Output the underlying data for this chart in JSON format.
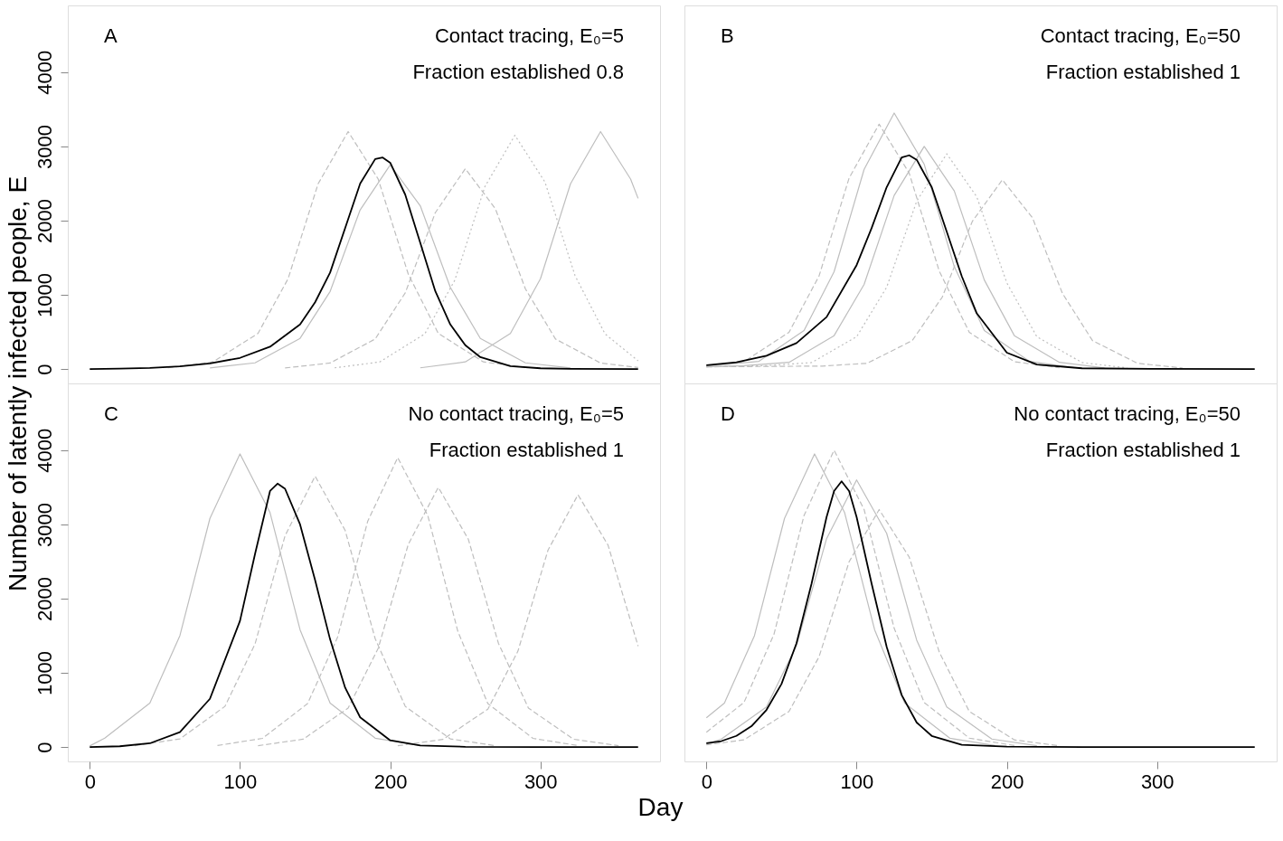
{
  "chart_data": [
    {
      "type": "line",
      "xlim": [
        -14.6,
        379.6
      ],
      "ylim": [
        -194,
        4900
      ],
      "xticks": [
        0,
        100,
        200,
        300
      ],
      "yticks": [
        0,
        1000,
        2000,
        3000,
        4000
      ],
      "tick_labels": "y",
      "ylabel": "Number of latently infected people, E",
      "grid": false,
      "marker": "none",
      "annotations": [
        "A",
        "Contact tracing, E₀=5",
        "Fraction established  0.8"
      ],
      "series": [
        {
          "color": "#bebebe",
          "line_style": "dashed",
          "x": [
            52,
            82,
            112,
            132,
            152,
            172,
            192,
            212,
            232,
            262,
            292
          ],
          "values": [
            16,
            96,
            480,
            1216,
            2496,
            3200,
            2560,
            1280,
            480,
            96,
            16
          ]
        },
        {
          "color": "#bebebe",
          "line_style": "solid",
          "x": [
            80,
            110,
            140,
            160,
            180,
            200,
            220,
            240,
            260,
            290,
            320
          ],
          "values": [
            14,
            83,
            413,
            1045,
            2145,
            2750,
            2200,
            1100,
            413,
            83,
            14
          ]
        },
        {
          "color": "#bebebe",
          "line_style": "dashed",
          "x": [
            130,
            160,
            190,
            210,
            230,
            250,
            270,
            290,
            310,
            340,
            365
          ],
          "values": [
            14,
            81,
            405,
            1026,
            2106,
            2700,
            2160,
            1080,
            405,
            81,
            20
          ]
        },
        {
          "color": "#bebebe",
          "line_style": "dotted",
          "x": [
            163,
            193,
            223,
            243,
            263,
            283,
            303,
            323,
            343,
            365
          ],
          "values": [
            16,
            95,
            473,
            1197,
            2457,
            3150,
            2520,
            1260,
            473,
            110
          ]
        },
        {
          "color": "#bebebe",
          "line_style": "solid",
          "x": [
            220,
            250,
            280,
            300,
            320,
            340,
            360,
            365
          ],
          "values": [
            16,
            96,
            480,
            1216,
            2496,
            3200,
            2560,
            2300
          ]
        },
        {
          "color": "#000000",
          "line_style": "solid",
          "x": [
            0,
            20,
            40,
            60,
            80,
            100,
            120,
            140,
            150,
            160,
            170,
            180,
            190,
            195,
            200,
            210,
            220,
            230,
            240,
            250,
            260,
            280,
            300,
            320,
            365
          ],
          "values": [
            0,
            5,
            15,
            35,
            75,
            150,
            300,
            600,
            900,
            1300,
            1900,
            2500,
            2830,
            2850,
            2780,
            2350,
            1700,
            1050,
            600,
            320,
            160,
            40,
            10,
            2,
            0
          ]
        }
      ]
    },
    {
      "type": "line",
      "xlim": [
        -14.6,
        379.6
      ],
      "ylim": [
        -194,
        4900
      ],
      "xticks": [
        0,
        100,
        200,
        300
      ],
      "yticks": [
        0,
        1000,
        2000,
        3000,
        4000
      ],
      "tick_labels": false,
      "grid": false,
      "marker": "none",
      "annotations": [
        "B",
        "Contact tracing, E₀=50",
        "Fraction established  1"
      ],
      "series": [
        {
          "color": "#bebebe",
          "line_style": "dashed",
          "x": [
            0,
            25,
            55,
            75,
            95,
            115,
            135,
            155,
            175,
            205,
            235
          ],
          "values": [
            40,
            99,
            495,
            1254,
            2574,
            3300,
            2640,
            1320,
            495,
            99,
            17
          ]
        },
        {
          "color": "#bebebe",
          "line_style": "solid",
          "x": [
            0,
            35,
            65,
            85,
            105,
            125,
            145,
            165,
            185,
            215,
            245
          ],
          "values": [
            40,
            104,
            518,
            1311,
            2691,
            3450,
            2760,
            1380,
            518,
            104,
            17
          ]
        },
        {
          "color": "#bebebe",
          "line_style": "solid",
          "x": [
            0,
            25,
            55,
            85,
            105,
            125,
            145,
            165,
            185,
            205,
            235,
            265
          ],
          "values": [
            30,
            45,
            90,
            450,
            1140,
            2340,
            3000,
            2400,
            1200,
            450,
            90,
            15
          ]
        },
        {
          "color": "#bebebe",
          "line_style": "dotted",
          "x": [
            0,
            40,
            70,
            100,
            120,
            140,
            160,
            180,
            200,
            220,
            250,
            280
          ],
          "values": [
            30,
            45,
            87,
            435,
            1102,
            2262,
            2900,
            2320,
            1160,
            435,
            87,
            15
          ]
        },
        {
          "color": "#bebebe",
          "line_style": "dashed",
          "x": [
            0,
            77,
            107,
            137,
            157,
            177,
            197,
            217,
            237,
            257,
            287,
            317
          ],
          "values": [
            30,
            40,
            77,
            383,
            969,
            1989,
            2550,
            2040,
            1020,
            383,
            77,
            13
          ]
        },
        {
          "color": "#000000",
          "line_style": "solid",
          "x": [
            0,
            20,
            40,
            60,
            80,
            100,
            110,
            120,
            130,
            135,
            140,
            150,
            160,
            170,
            180,
            200,
            220,
            250,
            300,
            365
          ],
          "values": [
            50,
            90,
            180,
            350,
            700,
            1400,
            1900,
            2450,
            2850,
            2880,
            2820,
            2450,
            1850,
            1250,
            750,
            220,
            60,
            10,
            2,
            0
          ]
        }
      ]
    },
    {
      "type": "line",
      "xlim": [
        -14.6,
        379.6
      ],
      "ylim": [
        -194,
        4900
      ],
      "xticks": [
        0,
        100,
        200,
        300
      ],
      "yticks": [
        0,
        1000,
        2000,
        3000,
        4000
      ],
      "xlabel": "Day",
      "grid": false,
      "marker": "none",
      "annotations": [
        "C",
        "No contact tracing, E₀=5",
        "Fraction established  1"
      ],
      "series": [
        {
          "color": "#bebebe",
          "line_style": "solid",
          "x": [
            0,
            10,
            40,
            60,
            80,
            100,
            120,
            140,
            160,
            190,
            220
          ],
          "values": [
            15,
            119,
            593,
            1501,
            3081,
            3950,
            3160,
            1580,
            593,
            119,
            20
          ]
        },
        {
          "color": "#bebebe",
          "line_style": "dashed",
          "x": [
            30,
            60,
            90,
            110,
            130,
            150,
            170,
            190,
            210,
            240,
            270
          ],
          "values": [
            18,
            110,
            548,
            1387,
            2847,
            3650,
            2920,
            1460,
            548,
            110,
            18
          ]
        },
        {
          "color": "#bebebe",
          "line_style": "dashed",
          "x": [
            85,
            115,
            145,
            165,
            185,
            205,
            225,
            245,
            265,
            295,
            325
          ],
          "values": [
            20,
            117,
            585,
            1482,
            3042,
            3900,
            3120,
            1560,
            585,
            117,
            20
          ]
        },
        {
          "color": "#bebebe",
          "line_style": "dashed",
          "x": [
            112,
            142,
            172,
            192,
            212,
            232,
            252,
            272,
            292,
            322,
            352
          ],
          "values": [
            18,
            105,
            525,
            1330,
            2730,
            3500,
            2800,
            1400,
            525,
            105,
            18
          ]
        },
        {
          "color": "#bebebe",
          "line_style": "dashed",
          "x": [
            205,
            235,
            265,
            285,
            305,
            325,
            345,
            365
          ],
          "values": [
            17,
            102,
            510,
            1292,
            2652,
            3400,
            2720,
            1360
          ]
        },
        {
          "color": "#000000",
          "line_style": "solid",
          "x": [
            0,
            20,
            40,
            60,
            80,
            100,
            110,
            120,
            125,
            130,
            140,
            150,
            160,
            170,
            180,
            200,
            220,
            250,
            300,
            365
          ],
          "values": [
            0,
            10,
            50,
            200,
            650,
            1700,
            2600,
            3450,
            3550,
            3480,
            3000,
            2250,
            1450,
            800,
            400,
            90,
            20,
            3,
            0,
            0
          ]
        }
      ]
    },
    {
      "type": "line",
      "xlim": [
        -14.6,
        379.6
      ],
      "ylim": [
        -194,
        4900
      ],
      "xticks": [
        0,
        100,
        200,
        300
      ],
      "yticks": [
        0,
        1000,
        2000,
        3000,
        4000
      ],
      "tick_labels": "x",
      "grid": false,
      "marker": "none",
      "annotations": [
        "D",
        "No contact tracing, E₀=50",
        "Fraction established  1"
      ],
      "series": [
        {
          "color": "#bebebe",
          "line_style": "solid",
          "x": [
            0,
            12,
            32,
            52,
            72,
            92,
            112,
            132,
            162,
            192
          ],
          "values": [
            395,
            593,
            1501,
            3081,
            3950,
            3160,
            1580,
            593,
            119,
            20
          ]
        },
        {
          "color": "#bebebe",
          "line_style": "dashed",
          "x": [
            0,
            25,
            45,
            65,
            85,
            105,
            125,
            145,
            175,
            205
          ],
          "values": [
            200,
            600,
            1520,
            3120,
            4000,
            3200,
            1600,
            600,
            120,
            20
          ]
        },
        {
          "color": "#bebebe",
          "line_style": "solid",
          "x": [
            0,
            10,
            40,
            60,
            80,
            100,
            120,
            140,
            160,
            190,
            220
          ],
          "values": [
            40,
            108,
            540,
            1368,
            2808,
            3600,
            2880,
            1440,
            540,
            108,
            18
          ]
        },
        {
          "color": "#bebebe",
          "line_style": "dashed",
          "x": [
            0,
            25,
            55,
            75,
            95,
            115,
            135,
            155,
            175,
            205,
            235
          ],
          "values": [
            30,
            96,
            480,
            1216,
            2496,
            3200,
            2560,
            1280,
            480,
            96,
            16
          ]
        },
        {
          "color": "#000000",
          "line_style": "solid",
          "x": [
            0,
            10,
            20,
            30,
            40,
            50,
            60,
            70,
            80,
            85,
            90,
            95,
            100,
            110,
            120,
            130,
            140,
            150,
            170,
            200,
            250,
            365
          ],
          "values": [
            50,
            80,
            150,
            280,
            500,
            850,
            1400,
            2200,
            3100,
            3450,
            3580,
            3450,
            3100,
            2200,
            1350,
            700,
            330,
            150,
            30,
            5,
            0,
            0
          ]
        }
      ]
    }
  ]
}
